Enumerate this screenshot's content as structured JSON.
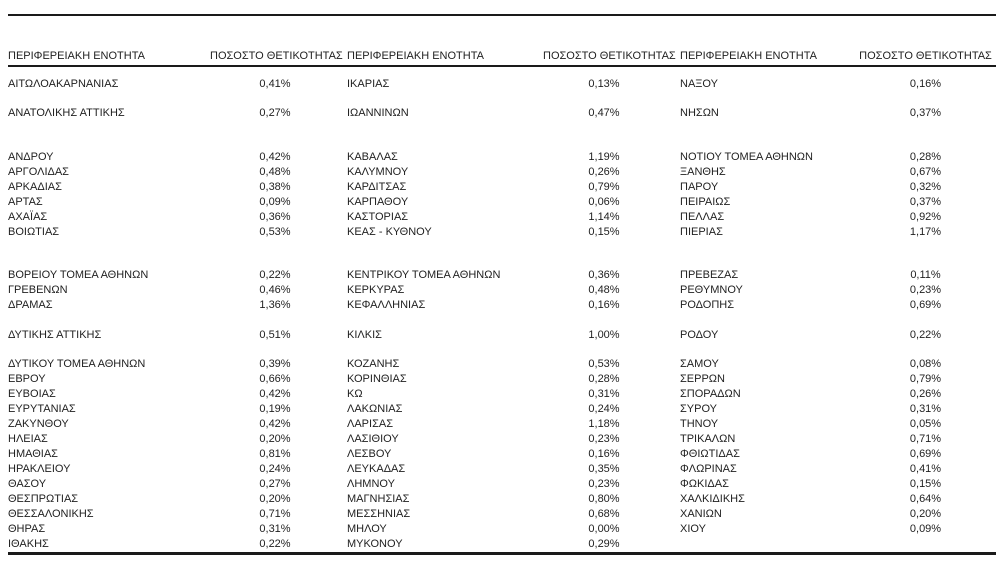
{
  "table": {
    "column_headers": {
      "region": "ΠΕΡΙΦΕΡΕΙΑΚΗ ΕΝΟΤΗΤΑ",
      "positivity": "ΠΟΣΟΣΤΟ ΘΕΤΙΚΟΤΗΤΑΣ"
    },
    "text_color": "#1f1f1f",
    "rule_color": "#1a1a1a",
    "sections": [
      {
        "blocks": [
          [
            {
              "region": "ΑΙΤΩΛΟΑΚΑΡΝΑΝΙΑΣ",
              "value": "0,41%"
            },
            {
              "region": "ΑΝΑΤΟΛΙΚΗΣ ΑΤΤΙΚΗΣ",
              "value": "0,27%"
            }
          ],
          [
            {
              "region": "ΑΝΔΡΟΥ",
              "value": "0,42%"
            },
            {
              "region": "ΑΡΓΟΛΙΔΑΣ",
              "value": "0,48%"
            },
            {
              "region": "ΑΡΚΑΔΙΑΣ",
              "value": "0,38%"
            },
            {
              "region": "ΑΡΤΑΣ",
              "value": "0,09%"
            },
            {
              "region": "ΑΧΑΪΑΣ",
              "value": "0,36%"
            },
            {
              "region": "ΒΟΙΩΤΙΑΣ",
              "value": "0,53%"
            }
          ],
          [
            {
              "region": "ΒΟΡΕΙΟΥ ΤΟΜΕΑ ΑΘΗΝΩΝ",
              "value": "0,22%"
            },
            {
              "region": "ΓΡΕΒΕΝΩΝ",
              "value": "0,46%"
            },
            {
              "region": "ΔΡΑΜΑΣ",
              "value": "1,36%"
            }
          ],
          [
            {
              "region": "ΔΥΤΙΚΗΣ ΑΤΤΙΚΗΣ",
              "value": "0,51%"
            }
          ],
          [
            {
              "region": "ΔΥΤΙΚΟΥ ΤΟΜΕΑ ΑΘΗΝΩΝ",
              "value": "0,39%"
            },
            {
              "region": "ΕΒΡΟΥ",
              "value": "0,66%"
            },
            {
              "region": "ΕΥΒΟΙΑΣ",
              "value": "0,42%"
            },
            {
              "region": "ΕΥΡΥΤΑΝΙΑΣ",
              "value": "0,19%"
            },
            {
              "region": "ΖΑΚΥΝΘΟΥ",
              "value": "0,42%"
            },
            {
              "region": "ΗΛΕΙΑΣ",
              "value": "0,20%"
            },
            {
              "region": "ΗΜΑΘΙΑΣ",
              "value": "0,81%"
            },
            {
              "region": "ΗΡΑΚΛΕΙΟΥ",
              "value": "0,24%"
            },
            {
              "region": "ΘΑΣΟΥ",
              "value": "0,27%"
            },
            {
              "region": "ΘΕΣΠΡΩΤΙΑΣ",
              "value": "0,20%"
            },
            {
              "region": "ΘΕΣΣΑΛΟΝΙΚΗΣ",
              "value": "0,71%"
            },
            {
              "region": "ΘΗΡΑΣ",
              "value": "0,31%"
            },
            {
              "region": "ΙΘΑΚΗΣ",
              "value": "0,22%"
            }
          ]
        ]
      },
      {
        "blocks": [
          [
            {
              "region": "ΙΚΑΡΙΑΣ",
              "value": "0,13%"
            },
            {
              "region": "ΙΩΑΝΝΙΝΩΝ",
              "value": "0,47%"
            }
          ],
          [
            {
              "region": "ΚΑΒΑΛΑΣ",
              "value": "1,19%"
            },
            {
              "region": "ΚΑΛΥΜΝΟΥ",
              "value": "0,26%"
            },
            {
              "region": "ΚΑΡΔΙΤΣΑΣ",
              "value": "0,79%"
            },
            {
              "region": "ΚΑΡΠΑΘΟΥ",
              "value": "0,06%"
            },
            {
              "region": "ΚΑΣΤΟΡΙΑΣ",
              "value": "1,14%"
            },
            {
              "region": "ΚΕΑΣ - ΚΥΘΝΟΥ",
              "value": "0,15%"
            }
          ],
          [
            {
              "region": "ΚΕΝΤΡΙΚΟΥ ΤΟΜΕΑ ΑΘΗΝΩΝ",
              "value": "0,36%"
            },
            {
              "region": "ΚΕΡΚΥΡΑΣ",
              "value": "0,48%"
            },
            {
              "region": "ΚΕΦΑΛΛΗΝΙΑΣ",
              "value": "0,16%"
            }
          ],
          [
            {
              "region": "ΚΙΛΚΙΣ",
              "value": "1,00%"
            }
          ],
          [
            {
              "region": "ΚΟΖΑΝΗΣ",
              "value": "0,53%"
            },
            {
              "region": "ΚΟΡΙΝΘΙΑΣ",
              "value": "0,28%"
            },
            {
              "region": "ΚΩ",
              "value": "0,31%"
            },
            {
              "region": "ΛΑΚΩΝΙΑΣ",
              "value": "0,24%"
            },
            {
              "region": "ΛΑΡΙΣΑΣ",
              "value": "1,18%"
            },
            {
              "region": "ΛΑΣΙΘΙΟΥ",
              "value": "0,23%"
            },
            {
              "region": "ΛΕΣΒΟΥ",
              "value": "0,16%"
            },
            {
              "region": "ΛΕΥΚΑΔΑΣ",
              "value": "0,35%"
            },
            {
              "region": "ΛΗΜΝΟΥ",
              "value": "0,23%"
            },
            {
              "region": "ΜΑΓΝΗΣΙΑΣ",
              "value": "0,80%"
            },
            {
              "region": "ΜΕΣΣΗΝΙΑΣ",
              "value": "0,68%"
            },
            {
              "region": "ΜΗΛΟΥ",
              "value": "0,00%"
            },
            {
              "region": "ΜΥΚΟΝΟΥ",
              "value": "0,29%"
            }
          ]
        ]
      },
      {
        "blocks": [
          [
            {
              "region": "ΝΑΞΟΥ",
              "value": "0,16%"
            },
            {
              "region": "ΝΗΣΩΝ",
              "value": "0,37%"
            }
          ],
          [
            {
              "region": "ΝΟΤΙΟΥ ΤΟΜΕΑ ΑΘΗΝΩΝ",
              "value": "0,28%"
            },
            {
              "region": "ΞΑΝΘΗΣ",
              "value": "0,67%"
            },
            {
              "region": "ΠΑΡΟΥ",
              "value": "0,32%"
            },
            {
              "region": "ΠΕΙΡΑΙΩΣ",
              "value": "0,37%"
            },
            {
              "region": "ΠΕΛΛΑΣ",
              "value": "0,92%"
            },
            {
              "region": "ΠΙΕΡΙΑΣ",
              "value": "1,17%"
            }
          ],
          [
            {
              "region": "ΠΡΕΒΕΖΑΣ",
              "value": "0,11%"
            },
            {
              "region": "ΡΕΘΥΜΝΟΥ",
              "value": "0,23%"
            },
            {
              "region": "ΡΟΔΟΠΗΣ",
              "value": "0,69%"
            }
          ],
          [
            {
              "region": "ΡΟΔΟΥ",
              "value": "0,22%"
            }
          ],
          [
            {
              "region": "ΣΑΜΟΥ",
              "value": "0,08%"
            },
            {
              "region": "ΣΕΡΡΩΝ",
              "value": "0,79%"
            },
            {
              "region": "ΣΠΟΡΑΔΩΝ",
              "value": "0,26%"
            },
            {
              "region": "ΣΥΡΟΥ",
              "value": "0,31%"
            },
            {
              "region": "ΤΗΝΟΥ",
              "value": "0,05%"
            },
            {
              "region": "ΤΡΙΚΑΛΩΝ",
              "value": "0,71%"
            },
            {
              "region": "ΦΘΙΩΤΙΔΑΣ",
              "value": "0,69%"
            },
            {
              "region": "ΦΛΩΡΙΝΑΣ",
              "value": "0,41%"
            },
            {
              "region": "ΦΩΚΙΔΑΣ",
              "value": "0,15%"
            },
            {
              "region": "ΧΑΛΚΙΔΙΚΗΣ",
              "value": "0,64%"
            },
            {
              "region": "ΧΑΝΙΩΝ",
              "value": "0,20%"
            },
            {
              "region": "ΧΙΟΥ",
              "value": "0,09%"
            }
          ]
        ]
      }
    ]
  }
}
